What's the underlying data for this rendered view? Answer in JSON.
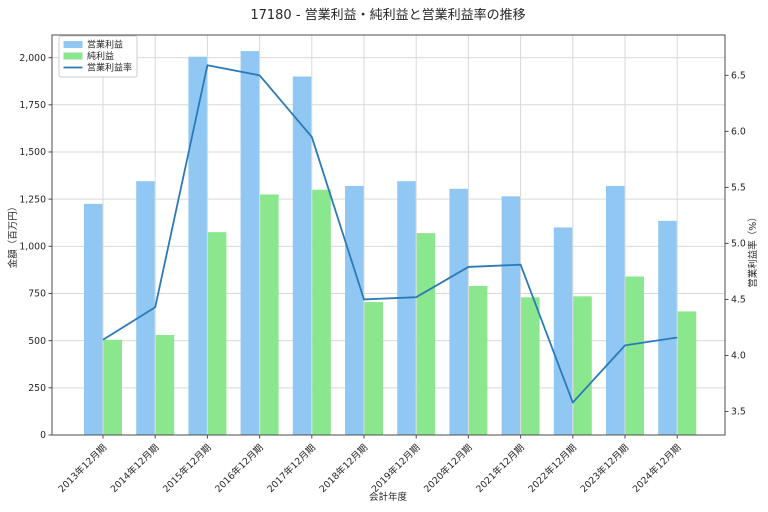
{
  "title": "17180 - 営業利益・純利益と営業利益率の推移",
  "chart_data": {
    "type": "bar+line",
    "title": "17180 - 営業利益・純利益と営業利益率の推移",
    "xlabel": "会計年度",
    "ylabel_left": "金額（百万円）",
    "ylabel_right": "営業利益率（%）",
    "grid": true,
    "legend_position": "upper-left",
    "categories": [
      "2013年12月期",
      "2014年12月期",
      "2015年12月期",
      "2016年12月期",
      "2017年12月期",
      "2018年12月期",
      "2019年12月期",
      "2020年12月期",
      "2021年12月期",
      "2022年12月期",
      "2023年12月期",
      "2024年12月期"
    ],
    "series": [
      {
        "name": "営業利益",
        "kind": "bar",
        "axis": "left",
        "color": "#90c8f3",
        "values": [
          1225,
          1345,
          2005,
          2035,
          1900,
          1320,
          1345,
          1305,
          1265,
          1100,
          1320,
          1135
        ]
      },
      {
        "name": "純利益",
        "kind": "bar",
        "axis": "left",
        "color": "#8be78d",
        "values": [
          505,
          530,
          1075,
          1275,
          1300,
          705,
          1070,
          790,
          730,
          735,
          840,
          655
        ]
      },
      {
        "name": "営業利益率",
        "kind": "line",
        "axis": "right",
        "color": "#2c7ab8",
        "values": [
          4.14,
          4.43,
          6.59,
          6.5,
          5.95,
          4.5,
          4.52,
          4.79,
          4.81,
          3.58,
          4.09,
          4.16
        ]
      }
    ],
    "left_axis": {
      "min": 0,
      "max": 2120,
      "ticks": [
        0,
        250,
        500,
        750,
        1000,
        1250,
        1500,
        1750,
        2000
      ],
      "tick_labels": [
        "0",
        "250",
        "500",
        "750",
        "1,000",
        "1,250",
        "1,500",
        "1,750",
        "2,000"
      ]
    },
    "right_axis": {
      "min": 3.29,
      "max": 6.86,
      "ticks": [
        3.5,
        4.0,
        4.5,
        5.0,
        5.5,
        6.0,
        6.5
      ],
      "tick_labels": [
        "3.5",
        "4.0",
        "4.5",
        "5.0",
        "5.5",
        "6.0",
        "6.5"
      ]
    },
    "colors": {
      "grid": "#d9d9d9",
      "spine": "#4d4d4d",
      "text": "#262626",
      "legend_border": "#cccccc"
    }
  }
}
